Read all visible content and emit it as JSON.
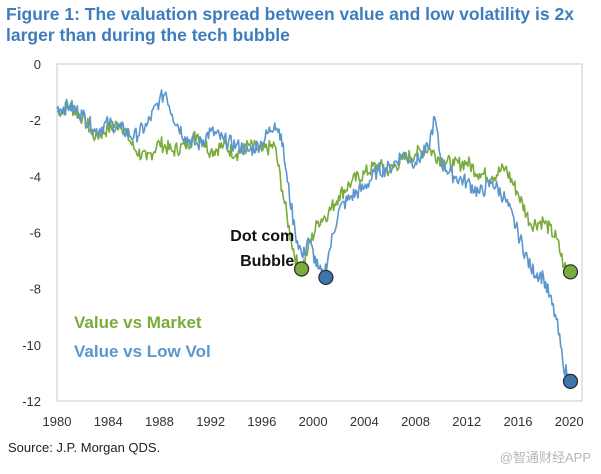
{
  "header": {
    "title": "Figure 1: The valuation spread between value and low volatility is 2x larger than during the tech bubble"
  },
  "footer": {
    "source": "Source: J.P. Morgan QDS.",
    "watermark": "@智通财经APP"
  },
  "chart_data": {
    "type": "line",
    "title": "Figure 1: The valuation spread between value and low volatility is 2x larger than during the tech bubble",
    "xlabel": "",
    "ylabel": "",
    "xlim": [
      1980,
      2021
    ],
    "ylim": [
      -12,
      0
    ],
    "x_ticks": [
      "1980",
      "1984",
      "1988",
      "1992",
      "1996",
      "2000",
      "2004",
      "2008",
      "2012",
      "2016",
      "2020"
    ],
    "y_ticks": [
      "0",
      "-2",
      "-4",
      "-6",
      "-8",
      "-10",
      "-12"
    ],
    "grid": false,
    "series": [
      {
        "name": "Value vs Market",
        "color": "#7aab3c",
        "points": [
          [
            1980,
            -1.7
          ],
          [
            1981,
            -1.5
          ],
          [
            1982,
            -1.9
          ],
          [
            1983,
            -2.6
          ],
          [
            1984,
            -2.3
          ],
          [
            1985,
            -2.1
          ],
          [
            1986,
            -3.0
          ],
          [
            1987,
            -3.4
          ],
          [
            1988,
            -2.8
          ],
          [
            1989,
            -3.1
          ],
          [
            1990,
            -2.9
          ],
          [
            1991,
            -2.5
          ],
          [
            1992,
            -3.1
          ],
          [
            1993,
            -2.9
          ],
          [
            1994,
            -3.2
          ],
          [
            1995,
            -2.9
          ],
          [
            1996,
            -3.1
          ],
          [
            1997,
            -2.9
          ],
          [
            1997.6,
            -4.5
          ],
          [
            1998.3,
            -6.3
          ],
          [
            1998.8,
            -7.2
          ],
          [
            1999.1,
            -7.3
          ],
          [
            1999.6,
            -6.6
          ],
          [
            2000.4,
            -5.6
          ],
          [
            2001.2,
            -5.3
          ],
          [
            2002,
            -4.7
          ],
          [
            2003,
            -4.2
          ],
          [
            2004,
            -3.9
          ],
          [
            2005,
            -3.6
          ],
          [
            2006,
            -3.8
          ],
          [
            2007,
            -3.4
          ],
          [
            2008,
            -3.2
          ],
          [
            2009,
            -3.0
          ],
          [
            2010,
            -3.4
          ],
          [
            2011,
            -3.6
          ],
          [
            2012,
            -3.5
          ],
          [
            2013,
            -3.9
          ],
          [
            2014,
            -4.0
          ],
          [
            2015,
            -3.7
          ],
          [
            2016,
            -4.6
          ],
          [
            2017,
            -5.7
          ],
          [
            2018,
            -5.6
          ],
          [
            2019,
            -6.2
          ],
          [
            2019.6,
            -7.2
          ],
          [
            2020,
            -7.4
          ]
        ]
      },
      {
        "name": "Value vs Low Vol",
        "color": "#5b96cc",
        "points": [
          [
            1980,
            -1.6
          ],
          [
            1981,
            -1.5
          ],
          [
            1982,
            -1.8
          ],
          [
            1983,
            -2.4
          ],
          [
            1984,
            -2.1
          ],
          [
            1985,
            -2.3
          ],
          [
            1986,
            -2.6
          ],
          [
            1987,
            -2.2
          ],
          [
            1988,
            -1.3
          ],
          [
            1988.5,
            -1.0
          ],
          [
            1989,
            -1.8
          ],
          [
            1990,
            -2.6
          ],
          [
            1991,
            -2.9
          ],
          [
            1992,
            -2.4
          ],
          [
            1993,
            -2.7
          ],
          [
            1994,
            -2.9
          ],
          [
            1995,
            -3.1
          ],
          [
            1996,
            -2.8
          ],
          [
            1997,
            -2.1
          ],
          [
            1997.5,
            -2.5
          ],
          [
            1998,
            -4.2
          ],
          [
            1998.6,
            -6.0
          ],
          [
            1999.2,
            -6.9
          ],
          [
            1999.6,
            -6.2
          ],
          [
            2000.4,
            -7.3
          ],
          [
            2000.8,
            -7.6
          ],
          [
            2001.3,
            -6.6
          ],
          [
            2002,
            -5.2
          ],
          [
            2003,
            -4.7
          ],
          [
            2004,
            -4.4
          ],
          [
            2005,
            -3.8
          ],
          [
            2006,
            -3.7
          ],
          [
            2007,
            -3.2
          ],
          [
            2008,
            -3.5
          ],
          [
            2009,
            -3.0
          ],
          [
            2009.5,
            -1.9
          ],
          [
            2010,
            -3.5
          ],
          [
            2011,
            -4.0
          ],
          [
            2012,
            -4.2
          ],
          [
            2013,
            -4.6
          ],
          [
            2014,
            -4.2
          ],
          [
            2015,
            -4.8
          ],
          [
            2016,
            -6.0
          ],
          [
            2017,
            -7.3
          ],
          [
            2018,
            -7.6
          ],
          [
            2019,
            -9.1
          ],
          [
            2019.5,
            -10.6
          ],
          [
            2020,
            -11.3
          ]
        ]
      }
    ],
    "markers": [
      {
        "series": "Value vs Market",
        "x": 1999.1,
        "y": -7.3,
        "color": "#7aab3c"
      },
      {
        "series": "Value vs Low Vol",
        "x": 2001.0,
        "y": -7.6,
        "color": "#3f74ad"
      },
      {
        "series": "Value vs Market",
        "x": 2020.1,
        "y": -7.4,
        "color": "#7aab3c"
      },
      {
        "series": "Value vs Low Vol",
        "x": 2020.1,
        "y": -11.3,
        "color": "#3f74ad"
      }
    ],
    "annotations": [
      {
        "text": "Dot com",
        "x": 1999.0,
        "y": -6.3
      },
      {
        "text": "Bubble",
        "x": 1999.0,
        "y": -7.2
      }
    ],
    "legend": [
      {
        "label": "Value vs Market",
        "color": "#7aab3c"
      },
      {
        "label": "Value vs Low Vol",
        "color": "#5b96cc"
      }
    ],
    "legend_placement": "bottom-left"
  }
}
